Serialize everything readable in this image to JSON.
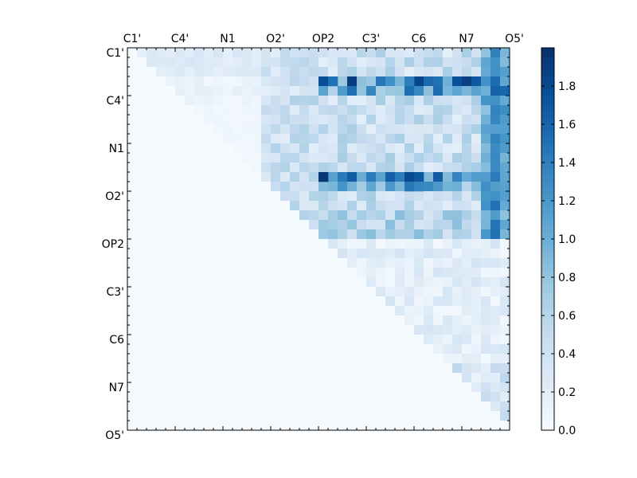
{
  "chart_data": {
    "type": "heatmap",
    "title": "",
    "xlabel": "",
    "ylabel": "",
    "x_tick_labels": [
      "C1'",
      "C4'",
      "N1",
      "O2'",
      "OP2",
      "C3'",
      "C6",
      "N7",
      "O5'"
    ],
    "y_tick_labels": [
      "C1'",
      "C4'",
      "N1",
      "O2'",
      "OP2",
      "C3'",
      "C6",
      "N7",
      "O5'"
    ],
    "x_axis_position": "top",
    "grid": false,
    "colormap": "Blues",
    "colorbar": {
      "min": 0.0,
      "max": 2.0,
      "ticks": [
        "0.0",
        "0.2",
        "0.4",
        "0.6",
        "0.8",
        "1.0",
        "1.2",
        "1.4",
        "1.6",
        "1.8"
      ],
      "position": "right"
    },
    "n_rows": 40,
    "n_cols": 40,
    "structure": "upper triangular matrix (cells on and below the diagonal are near zero)",
    "value_range": [
      0.0,
      1.95
    ]
  }
}
